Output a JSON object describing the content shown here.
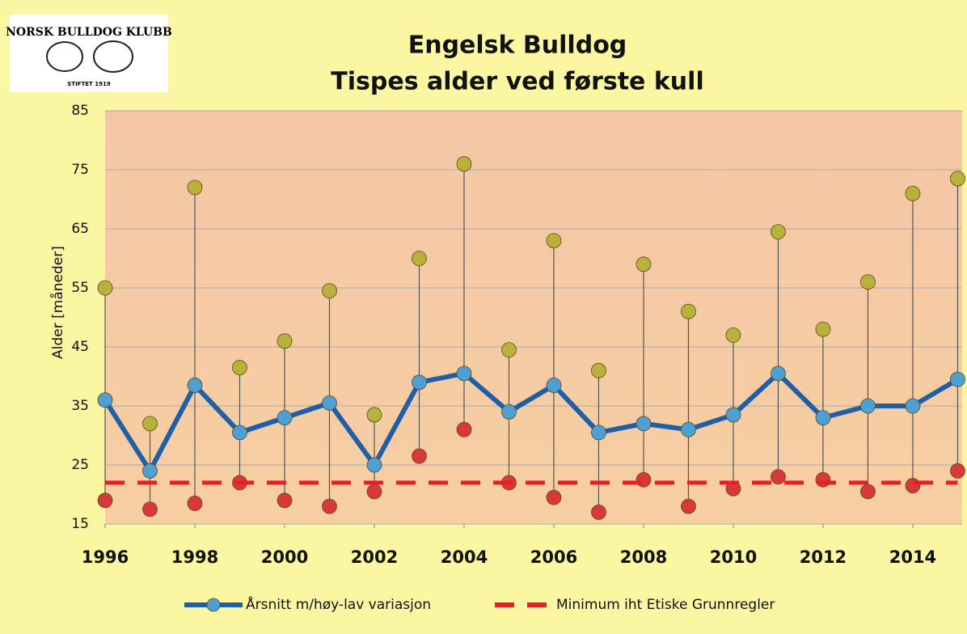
{
  "logo": {
    "text": "NORSK BULLDOG KLUBB",
    "subtext": "STIFTET 1919"
  },
  "chart_data": {
    "type": "line",
    "title": "Engelsk Bulldog",
    "subtitle": "Tispes alder ved første kull",
    "y_label": "Alder [måneder]",
    "x": [
      1996,
      1997,
      1998,
      1999,
      2000,
      2001,
      2002,
      2003,
      2004,
      2005,
      2006,
      2007,
      2008,
      2009,
      2010,
      2011,
      2012,
      2013,
      2014,
      2015
    ],
    "series": [
      {
        "name": "Årsnitt m/høy-lav variasjon",
        "color": "#1f5fa8",
        "values": [
          36,
          24,
          38.5,
          30.5,
          33,
          35.5,
          25,
          39,
          40.5,
          34,
          38.5,
          30.5,
          32,
          31,
          33.5,
          40.5,
          33,
          35,
          35,
          39.5
        ],
        "high": [
          55,
          32,
          72,
          41.5,
          46,
          54.5,
          33.5,
          60,
          76,
          44.5,
          63,
          41,
          59,
          51,
          47,
          64.5,
          48,
          56,
          71,
          73.5
        ],
        "low": [
          19,
          17.5,
          18.5,
          22,
          19,
          18,
          20.5,
          26.5,
          31,
          22,
          19.5,
          17,
          22.5,
          18,
          21,
          23,
          22.5,
          20.5,
          21.5,
          24
        ],
        "high_color": "#b8b23c",
        "low_color": "#d8383a"
      },
      {
        "name": "Minimum iht Etiske Grunnregler",
        "color": "#e3202a",
        "values": [
          22,
          22,
          22,
          22,
          22,
          22,
          22,
          22,
          22,
          22,
          22,
          22,
          22,
          22,
          22,
          22,
          22,
          22,
          22,
          22
        ]
      }
    ],
    "xlim": [
      1996,
      2015.1
    ],
    "xticks": [
      1996,
      1998,
      2000,
      2002,
      2004,
      2006,
      2008,
      2010,
      2012,
      2014
    ],
    "ylim": [
      15,
      85
    ],
    "yticks": [
      15,
      25,
      35,
      45,
      55,
      65,
      75,
      85
    ],
    "grid": true,
    "legend": "bottom"
  }
}
